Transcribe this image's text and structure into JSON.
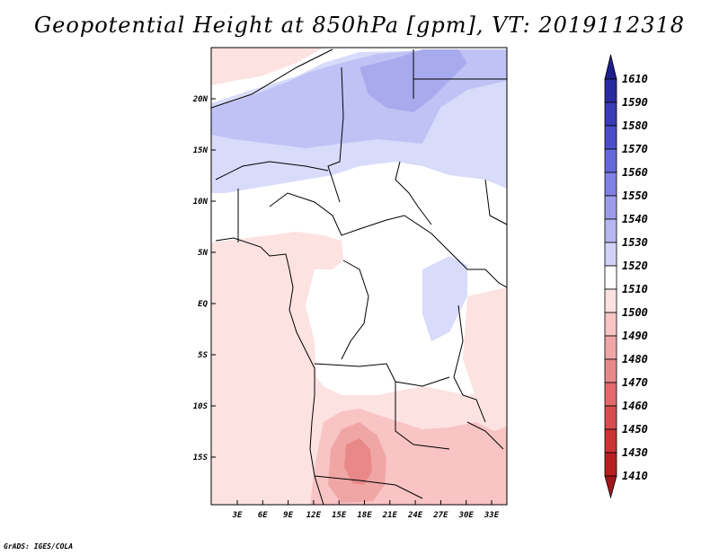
{
  "title": "Geopotential Height at 850hPa [gpm], VT: 2019112318",
  "credit": "GrADS: IGES/COLA",
  "lat_labels": [
    "20N",
    "15N",
    "10N",
    "5N",
    "EQ",
    "5S",
    "10S",
    "15S"
  ],
  "lon_labels": [
    "3E",
    "6E",
    "9E",
    "12E",
    "15E",
    "18E",
    "21E",
    "24E",
    "27E",
    "30E",
    "33E"
  ],
  "colorbar": {
    "levels": [
      "1610",
      "1590",
      "1580",
      "1570",
      "1560",
      "1550",
      "1540",
      "1530",
      "1520",
      "1510",
      "1500",
      "1490",
      "1480",
      "1470",
      "1460",
      "1450",
      "1430",
      "1410"
    ],
    "colors": {
      "top_tip": "#1f1f8c",
      "bands": [
        "#2a2aa0",
        "#3b3bb8",
        "#4d4dcc",
        "#6767dc",
        "#8080e6",
        "#9c9cec",
        "#b6b6f2",
        "#d2d2f8",
        "#ffffff",
        "#fde2e2",
        "#f8c4c4",
        "#f1a6a6",
        "#e98888",
        "#e26a6a",
        "#d84d4d",
        "#cc3333",
        "#b82020"
      ],
      "bottom_tip": "#a01818"
    }
  },
  "map_colors": {
    "ocean_pink": "#fde2e2",
    "light_blue": "#d9dbfb",
    "mid_blue": "#c0c2f5",
    "strong_blue": "#a8aaee",
    "pink2": "#f8c4c4",
    "pink3": "#f1a6a6",
    "pink4": "#e98888"
  }
}
